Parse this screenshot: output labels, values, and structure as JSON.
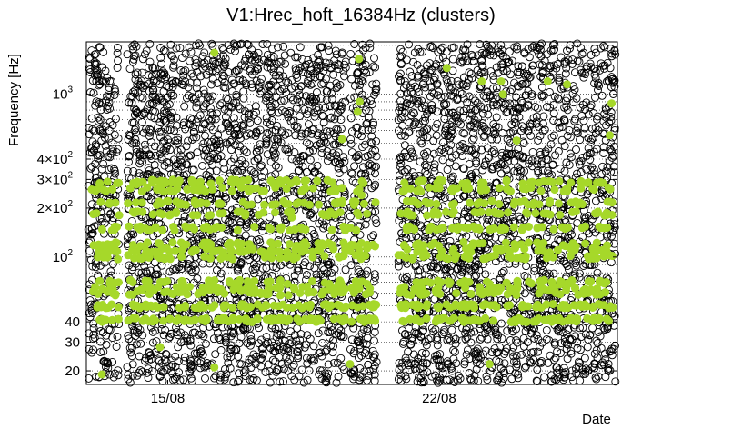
{
  "chart_data": {
    "type": "scatter",
    "title": "V1:Hrec_hoft_16384Hz (clusters)",
    "xlabel": "Date",
    "ylabel": "Frequency [Hz]",
    "y_scale": "log",
    "ylim": [
      16.5,
      2100
    ],
    "x_unit": "days (August)",
    "xlim": [
      12.9,
      26.6
    ],
    "x_tick_labels": [
      {
        "x": 15,
        "label": "15/08"
      },
      {
        "x": 22,
        "label": "22/08"
      }
    ],
    "y_ticks": [
      {
        "value": 20,
        "label": "20"
      },
      {
        "value": 30,
        "label": "30"
      },
      {
        "value": 40,
        "label": "40"
      },
      {
        "value": 100,
        "label": "10",
        "exp": "2"
      },
      {
        "value": 200,
        "label": "2×10",
        "exp": "2"
      },
      {
        "value": 300,
        "label": "3×10",
        "exp": "2"
      },
      {
        "value": 400,
        "label": "4×10",
        "exp": "2"
      },
      {
        "value": 1000,
        "label": "10",
        "exp": "3"
      }
    ],
    "grid": true,
    "data_gaps_days": [
      [
        13.75,
        13.95
      ],
      [
        19.6,
        19.7
      ],
      [
        20.4,
        20.95
      ]
    ],
    "series": [
      {
        "marker": "open-circle",
        "color": "#000000",
        "density": "very dense across full frequency range"
      },
      {
        "marker": "filled-circle",
        "color": "#a6d82a",
        "bands_hz": [
          41,
          50,
          60,
          64,
          70,
          100,
          110,
          120,
          150,
          185,
          215,
          260,
          290
        ],
        "outliers": [
          {
            "x": 16.2,
            "y": 1800
          },
          {
            "x": 19.93,
            "y": 1650
          },
          {
            "x": 19.95,
            "y": 900
          },
          {
            "x": 19.9,
            "y": 780
          },
          {
            "x": 22.2,
            "y": 1450
          },
          {
            "x": 23.1,
            "y": 1200
          },
          {
            "x": 23.6,
            "y": 1200
          },
          {
            "x": 23.65,
            "y": 1000
          },
          {
            "x": 24.8,
            "y": 1200
          },
          {
            "x": 25.3,
            "y": 1150
          },
          {
            "x": 26.45,
            "y": 880
          },
          {
            "x": 26.4,
            "y": 560
          },
          {
            "x": 24.0,
            "y": 520
          },
          {
            "x": 19.5,
            "y": 530
          },
          {
            "x": 20.0,
            "y": 240
          },
          {
            "x": 18.2,
            "y": 175
          },
          {
            "x": 14.2,
            "y": 280
          },
          {
            "x": 19.7,
            "y": 22
          },
          {
            "x": 23.3,
            "y": 22
          },
          {
            "x": 13.3,
            "y": 19
          },
          {
            "x": 16.2,
            "y": 21
          },
          {
            "x": 14.8,
            "y": 28
          }
        ]
      }
    ]
  }
}
